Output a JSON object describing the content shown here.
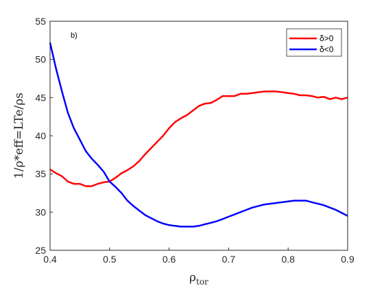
{
  "chart_data": {
    "type": "line",
    "panel_label": "b)",
    "xlabel": "ρ",
    "xlabel_sub": "tor",
    "ylabel": "1/ρ*eff=LTe/ρs",
    "xlim": [
      0.4,
      0.9
    ],
    "ylim": [
      25,
      55
    ],
    "xticks": [
      "0.4",
      "0.5",
      "0.6",
      "0.7",
      "0.8",
      "0.9"
    ],
    "yticks": [
      "25",
      "30",
      "35",
      "40",
      "45",
      "50",
      "55"
    ],
    "grid": false,
    "legend_position": "top-right",
    "series": [
      {
        "name": "δ>0",
        "color": "#ff0000",
        "x": [
          0.4,
          0.41,
          0.42,
          0.43,
          0.44,
          0.45,
          0.46,
          0.47,
          0.48,
          0.49,
          0.5,
          0.51,
          0.52,
          0.53,
          0.54,
          0.55,
          0.56,
          0.57,
          0.58,
          0.59,
          0.6,
          0.61,
          0.62,
          0.63,
          0.64,
          0.65,
          0.66,
          0.67,
          0.68,
          0.69,
          0.7,
          0.71,
          0.72,
          0.73,
          0.74,
          0.75,
          0.76,
          0.77,
          0.78,
          0.79,
          0.8,
          0.81,
          0.82,
          0.83,
          0.84,
          0.85,
          0.86,
          0.87,
          0.88,
          0.89,
          0.9
        ],
        "values": [
          35.6,
          35.1,
          34.7,
          34.0,
          33.7,
          33.7,
          33.4,
          33.4,
          33.7,
          33.9,
          34.0,
          34.5,
          35.1,
          35.5,
          36.0,
          36.7,
          37.6,
          38.4,
          39.2,
          40.0,
          41.0,
          41.8,
          42.3,
          42.7,
          43.3,
          43.9,
          44.2,
          44.3,
          44.7,
          45.2,
          45.2,
          45.2,
          45.5,
          45.5,
          45.6,
          45.7,
          45.8,
          45.8,
          45.8,
          45.7,
          45.6,
          45.5,
          45.3,
          45.3,
          45.2,
          45.0,
          45.1,
          44.8,
          45.0,
          44.8,
          45.0
        ]
      },
      {
        "name": "δ<0",
        "color": "#0000ff",
        "x": [
          0.4,
          0.41,
          0.42,
          0.43,
          0.44,
          0.45,
          0.46,
          0.47,
          0.48,
          0.49,
          0.5,
          0.51,
          0.52,
          0.53,
          0.54,
          0.55,
          0.56,
          0.57,
          0.58,
          0.59,
          0.6,
          0.61,
          0.62,
          0.63,
          0.64,
          0.65,
          0.66,
          0.67,
          0.68,
          0.69,
          0.7,
          0.71,
          0.72,
          0.73,
          0.74,
          0.75,
          0.76,
          0.77,
          0.78,
          0.79,
          0.8,
          0.81,
          0.82,
          0.83,
          0.84,
          0.85,
          0.86,
          0.87,
          0.88,
          0.89,
          0.9
        ],
        "values": [
          52.2,
          48.8,
          45.8,
          43.0,
          41.0,
          39.5,
          38.0,
          37.0,
          36.2,
          35.3,
          34.0,
          33.3,
          32.5,
          31.5,
          30.8,
          30.2,
          29.6,
          29.2,
          28.8,
          28.5,
          28.3,
          28.2,
          28.1,
          28.1,
          28.1,
          28.2,
          28.4,
          28.6,
          28.8,
          29.1,
          29.4,
          29.7,
          30.0,
          30.3,
          30.6,
          30.8,
          31.0,
          31.1,
          31.2,
          31.3,
          31.4,
          31.5,
          31.5,
          31.5,
          31.3,
          31.1,
          30.9,
          30.6,
          30.3,
          29.9,
          29.5
        ]
      }
    ]
  }
}
